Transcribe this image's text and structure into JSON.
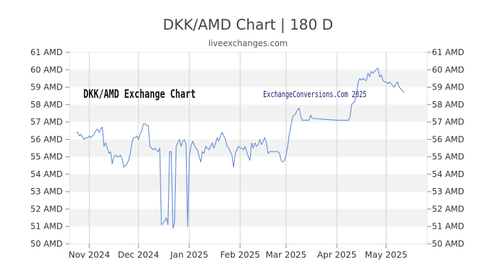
{
  "chart_data": {
    "type": "line",
    "title": "DKK/AMD Chart | 180 D",
    "subtitle": "liveexchanges.com",
    "watermarks": {
      "left": "DKK/AMD Exchange Chart",
      "right": "ExchangeConversions.Com 2025"
    },
    "y_axis": {
      "min": 50,
      "max": 61,
      "ticks": [
        50,
        51,
        52,
        53,
        54,
        55,
        56,
        57,
        58,
        59,
        60,
        61
      ],
      "unit_suffix": " AMD",
      "tick_labels": [
        "50 AMD",
        "51 AMD",
        "52 AMD",
        "53 AMD",
        "54 AMD",
        "55 AMD",
        "56 AMD",
        "57 AMD",
        "58 AMD",
        "59 AMD",
        "60 AMD",
        "61 AMD"
      ]
    },
    "x_axis": {
      "start": "2024-10-20",
      "end": "2025-05-26",
      "tick_labels": [
        "Nov 2024",
        "Dec 2024",
        "Jan 2025",
        "Feb 2025",
        "Mar 2025",
        "Apr 2025",
        "May 2025"
      ],
      "tick_dates": [
        "2024-11-01",
        "2024-12-01",
        "2025-01-01",
        "2025-02-01",
        "2025-03-01",
        "2025-04-01",
        "2025-05-01"
      ]
    },
    "grid": true,
    "colors": {
      "line": "#5b8bd6",
      "band": "#f2f2f2",
      "title": "#444444",
      "text": "#333333",
      "watermark_left": "#111111",
      "watermark_right": "#1a1a6e"
    },
    "series": [
      {
        "points": [
          [
            "2024-10-24",
            56.4
          ],
          [
            "2024-10-25",
            56.4
          ],
          [
            "2024-10-26",
            56.2
          ],
          [
            "2024-10-27",
            56.3
          ],
          [
            "2024-10-28",
            56.1
          ],
          [
            "2024-10-29",
            56.0
          ],
          [
            "2024-10-30",
            56.1
          ],
          [
            "2024-10-31",
            56.1
          ],
          [
            "2024-11-01",
            56.2
          ],
          [
            "2024-11-02",
            56.1
          ],
          [
            "2024-11-03",
            56.2
          ],
          [
            "2024-11-04",
            56.3
          ],
          [
            "2024-11-05",
            56.5
          ],
          [
            "2024-11-06",
            56.6
          ],
          [
            "2024-11-07",
            56.4
          ],
          [
            "2024-11-08",
            56.6
          ],
          [
            "2024-11-09",
            56.7
          ],
          [
            "2024-11-10",
            55.6
          ],
          [
            "2024-11-11",
            55.8
          ],
          [
            "2024-11-12",
            55.5
          ],
          [
            "2024-11-13",
            55.2
          ],
          [
            "2024-11-14",
            55.3
          ],
          [
            "2024-11-15",
            54.6
          ],
          [
            "2024-11-16",
            55.0
          ],
          [
            "2024-11-17",
            55.1
          ],
          [
            "2024-11-18",
            55.0
          ],
          [
            "2024-11-19",
            55.0
          ],
          [
            "2024-11-20",
            55.1
          ],
          [
            "2024-11-21",
            54.9
          ],
          [
            "2024-11-22",
            54.4
          ],
          [
            "2024-11-23",
            54.5
          ],
          [
            "2024-11-24",
            54.6
          ],
          [
            "2024-11-25",
            54.8
          ],
          [
            "2024-11-26",
            55.2
          ],
          [
            "2024-11-27",
            55.8
          ],
          [
            "2024-11-28",
            56.1
          ],
          [
            "2024-11-29",
            56.1
          ],
          [
            "2024-11-30",
            56.2
          ],
          [
            "2024-12-01",
            56.0
          ],
          [
            "2024-12-02",
            56.3
          ],
          [
            "2024-12-03",
            56.5
          ],
          [
            "2024-12-04",
            56.9
          ],
          [
            "2024-12-05",
            56.9
          ],
          [
            "2024-12-06",
            56.8
          ],
          [
            "2024-12-07",
            56.8
          ],
          [
            "2024-12-08",
            55.6
          ],
          [
            "2024-12-09",
            55.5
          ],
          [
            "2024-12-10",
            55.4
          ],
          [
            "2024-12-11",
            55.5
          ],
          [
            "2024-12-12",
            55.4
          ],
          [
            "2024-12-13",
            55.3
          ],
          [
            "2024-12-14",
            55.5
          ],
          [
            "2024-12-15",
            51.1
          ],
          [
            "2024-12-16",
            51.2
          ],
          [
            "2024-12-17",
            51.3
          ],
          [
            "2024-12-18",
            51.5
          ],
          [
            "2024-12-19",
            51.1
          ],
          [
            "2024-12-20",
            55.3
          ],
          [
            "2024-12-21",
            55.3
          ],
          [
            "2024-12-22",
            50.9
          ],
          [
            "2024-12-23",
            51.2
          ],
          [
            "2024-12-24",
            55.6
          ],
          [
            "2024-12-25",
            55.8
          ],
          [
            "2024-12-26",
            56.0
          ],
          [
            "2024-12-27",
            55.6
          ],
          [
            "2024-12-28",
            55.9
          ],
          [
            "2024-12-29",
            56.0
          ],
          [
            "2024-12-30",
            55.7
          ],
          [
            "2024-12-31",
            51.0
          ],
          [
            "2025-01-01",
            55.0
          ],
          [
            "2025-01-02",
            55.6
          ],
          [
            "2025-01-03",
            55.9
          ],
          [
            "2025-01-04",
            55.7
          ],
          [
            "2025-01-05",
            55.5
          ],
          [
            "2025-01-06",
            55.4
          ],
          [
            "2025-01-07",
            55.0
          ],
          [
            "2025-01-08",
            54.7
          ],
          [
            "2025-01-09",
            55.3
          ],
          [
            "2025-01-10",
            55.2
          ],
          [
            "2025-01-11",
            55.6
          ],
          [
            "2025-01-12",
            55.5
          ],
          [
            "2025-01-13",
            55.4
          ],
          [
            "2025-01-14",
            55.6
          ],
          [
            "2025-01-15",
            55.8
          ],
          [
            "2025-01-16",
            55.5
          ],
          [
            "2025-01-17",
            55.8
          ],
          [
            "2025-01-18",
            56.1
          ],
          [
            "2025-01-19",
            55.9
          ],
          [
            "2025-01-20",
            56.2
          ],
          [
            "2025-01-21",
            56.4
          ],
          [
            "2025-01-22",
            56.2
          ],
          [
            "2025-01-23",
            56.0
          ],
          [
            "2025-01-24",
            55.6
          ],
          [
            "2025-01-25",
            55.5
          ],
          [
            "2025-01-26",
            55.3
          ],
          [
            "2025-01-27",
            55.1
          ],
          [
            "2025-01-28",
            54.4
          ],
          [
            "2025-01-29",
            55.2
          ],
          [
            "2025-01-30",
            55.4
          ],
          [
            "2025-01-31",
            55.6
          ],
          [
            "2025-02-01",
            55.5
          ],
          [
            "2025-02-02",
            55.5
          ],
          [
            "2025-02-03",
            55.4
          ],
          [
            "2025-02-04",
            55.6
          ],
          [
            "2025-02-05",
            55.3
          ],
          [
            "2025-02-06",
            55.0
          ],
          [
            "2025-02-07",
            54.8
          ],
          [
            "2025-02-08",
            55.8
          ],
          [
            "2025-02-09",
            55.5
          ],
          [
            "2025-02-10",
            55.8
          ],
          [
            "2025-02-11",
            55.6
          ],
          [
            "2025-02-12",
            55.7
          ],
          [
            "2025-02-13",
            56.0
          ],
          [
            "2025-02-14",
            55.7
          ],
          [
            "2025-02-15",
            55.9
          ],
          [
            "2025-02-16",
            56.1
          ],
          [
            "2025-02-17",
            55.8
          ],
          [
            "2025-02-18",
            55.2
          ],
          [
            "2025-02-19",
            55.3
          ],
          [
            "2025-02-20",
            55.3
          ],
          [
            "2025-02-21",
            55.3
          ],
          [
            "2025-02-22",
            55.3
          ],
          [
            "2025-02-23",
            55.3
          ],
          [
            "2025-02-24",
            55.3
          ],
          [
            "2025-02-25",
            55.2
          ],
          [
            "2025-02-26",
            54.8
          ],
          [
            "2025-02-27",
            54.7
          ],
          [
            "2025-02-28",
            54.8
          ],
          [
            "2025-03-01",
            55.1
          ],
          [
            "2025-03-02",
            55.6
          ],
          [
            "2025-03-03",
            56.3
          ],
          [
            "2025-03-04",
            56.8
          ],
          [
            "2025-03-05",
            57.3
          ],
          [
            "2025-03-06",
            57.4
          ],
          [
            "2025-03-07",
            57.5
          ],
          [
            "2025-03-08",
            57.7
          ],
          [
            "2025-03-09",
            57.8
          ],
          [
            "2025-03-10",
            57.3
          ],
          [
            "2025-03-11",
            57.1
          ],
          [
            "2025-03-12",
            57.1
          ],
          [
            "2025-03-13",
            57.1
          ],
          [
            "2025-03-14",
            57.1
          ],
          [
            "2025-03-15",
            57.1
          ],
          [
            "2025-03-16",
            57.4
          ],
          [
            "2025-03-17",
            57.2
          ],
          [
            "2025-03-18",
            57.2
          ],
          [
            "2025-03-25",
            57.15
          ],
          [
            "2025-04-01",
            57.1
          ],
          [
            "2025-04-08",
            57.1
          ],
          [
            "2025-04-09",
            57.3
          ],
          [
            "2025-04-10",
            58.0
          ],
          [
            "2025-04-11",
            58.1
          ],
          [
            "2025-04-12",
            58.2
          ],
          [
            "2025-04-13",
            58.6
          ],
          [
            "2025-04-14",
            59.3
          ],
          [
            "2025-04-15",
            59.5
          ],
          [
            "2025-04-16",
            59.4
          ],
          [
            "2025-04-17",
            59.5
          ],
          [
            "2025-04-18",
            59.4
          ],
          [
            "2025-04-19",
            59.4
          ],
          [
            "2025-04-20",
            59.8
          ],
          [
            "2025-04-21",
            59.6
          ],
          [
            "2025-04-22",
            59.9
          ],
          [
            "2025-04-23",
            59.8
          ],
          [
            "2025-04-24",
            59.9
          ],
          [
            "2025-04-25",
            60.0
          ],
          [
            "2025-04-26",
            60.1
          ],
          [
            "2025-04-27",
            59.6
          ],
          [
            "2025-04-28",
            59.7
          ],
          [
            "2025-04-29",
            59.4
          ],
          [
            "2025-04-30",
            59.3
          ],
          [
            "2025-05-01",
            59.3
          ],
          [
            "2025-05-02",
            59.2
          ],
          [
            "2025-05-03",
            59.3
          ],
          [
            "2025-05-04",
            59.2
          ],
          [
            "2025-05-05",
            59.1
          ],
          [
            "2025-05-06",
            59.0
          ],
          [
            "2025-05-07",
            59.2
          ],
          [
            "2025-05-08",
            59.3
          ],
          [
            "2025-05-09",
            59.0
          ],
          [
            "2025-05-10",
            58.9
          ],
          [
            "2025-05-11",
            58.8
          ],
          [
            "2025-05-12",
            58.7
          ]
        ]
      }
    ]
  }
}
